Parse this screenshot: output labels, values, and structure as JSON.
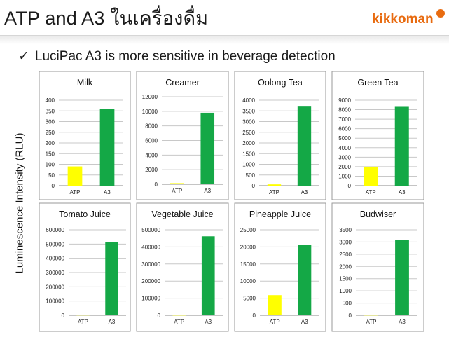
{
  "title": "ATP and A3 ในเครื่องดื่ม",
  "logo": {
    "text": "kikkoman"
  },
  "bullet": {
    "check": "✓",
    "text": "LuciPac A3 is more sensitive in beverage detection"
  },
  "y_axis_label": "Luminescence Intensity (RLU)",
  "colors": {
    "ATP": "#ffff00",
    "A3": "#14a846"
  },
  "chart_data": [
    {
      "type": "bar",
      "title": "Milk",
      "categories": [
        "ATP",
        "A3"
      ],
      "values": [
        90,
        360
      ],
      "ylim": [
        0,
        400
      ],
      "ticks": [
        0,
        50,
        100,
        150,
        200,
        250,
        300,
        350,
        400
      ]
    },
    {
      "type": "bar",
      "title": "Creamer",
      "categories": [
        "ATP",
        "A3"
      ],
      "values": [
        150,
        9800
      ],
      "ylim": [
        0,
        12000
      ],
      "ticks": [
        0,
        2000,
        4000,
        6000,
        8000,
        10000,
        12000
      ]
    },
    {
      "type": "bar",
      "title": "Oolong Tea",
      "categories": [
        "ATP",
        "A3"
      ],
      "values": [
        60,
        3700
      ],
      "ylim": [
        0,
        4000
      ],
      "ticks": [
        0,
        500,
        1000,
        1500,
        2000,
        2500,
        3000,
        3500,
        4000
      ]
    },
    {
      "type": "bar",
      "title": "Green Tea",
      "categories": [
        "ATP",
        "A3"
      ],
      "values": [
        2000,
        8300
      ],
      "ylim": [
        0,
        9000
      ],
      "ticks": [
        0,
        1000,
        2000,
        3000,
        4000,
        5000,
        6000,
        7000,
        8000,
        9000
      ]
    },
    {
      "type": "bar",
      "title": "Tomato Juice",
      "categories": [
        "ATP",
        "A3"
      ],
      "values": [
        3000,
        515000
      ],
      "ylim": [
        0,
        600000
      ],
      "ticks": [
        0,
        100000,
        200000,
        300000,
        400000,
        500000,
        600000
      ]
    },
    {
      "type": "bar",
      "title": "Vegetable Juice",
      "categories": [
        "ATP",
        "A3"
      ],
      "values": [
        2000,
        462000
      ],
      "ylim": [
        0,
        500000
      ],
      "ticks": [
        0,
        100000,
        200000,
        300000,
        400000,
        500000
      ]
    },
    {
      "type": "bar",
      "title": "Pineapple Juice",
      "categories": [
        "ATP",
        "A3"
      ],
      "values": [
        5900,
        20500
      ],
      "ylim": [
        0,
        25000
      ],
      "ticks": [
        0,
        5000,
        10000,
        15000,
        20000,
        25000
      ]
    },
    {
      "type": "bar",
      "title": "Budwiser",
      "categories": [
        "ATP",
        "A3"
      ],
      "values": [
        15,
        3080
      ],
      "ylim": [
        0,
        3500
      ],
      "ticks": [
        0,
        500,
        1000,
        1500,
        2000,
        2500,
        3000,
        3500
      ]
    }
  ]
}
